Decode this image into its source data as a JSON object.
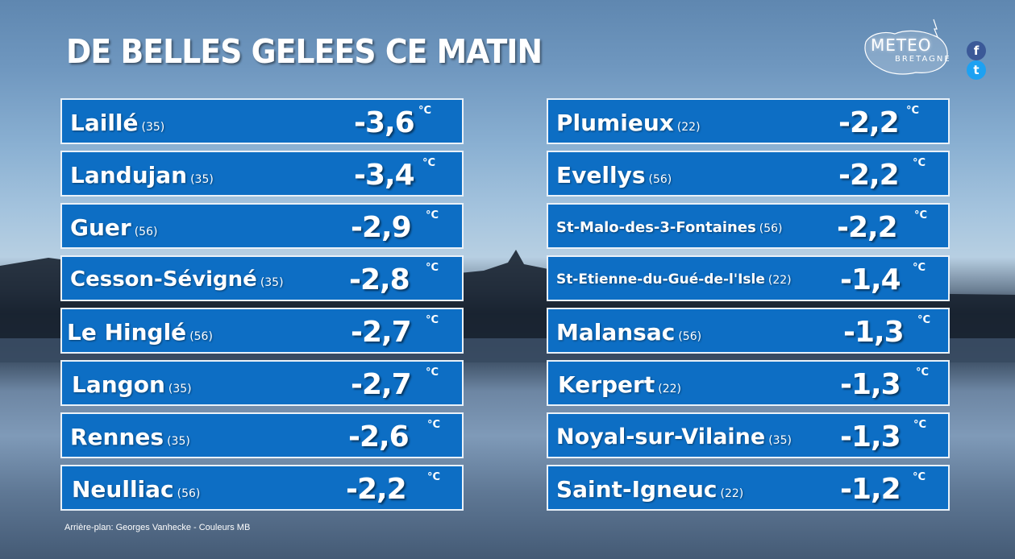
{
  "title": "DE BELLES GELEES CE MATIN",
  "logo": {
    "main": "METEO",
    "sub": "BRETAGNE"
  },
  "social": {
    "facebook": "f",
    "twitter": "t"
  },
  "unit": "°C",
  "left_rows": [
    {
      "city": "Laillé",
      "dept": "(35)",
      "temp": "-3,6"
    },
    {
      "city": "Landujan",
      "dept": "(35)",
      "temp": "-3,4"
    },
    {
      "city": "Guer",
      "dept": "(56)",
      "temp": "-2,9"
    },
    {
      "city": "Cesson-Sévigné",
      "dept": "(35)",
      "temp": "-2,8"
    },
    {
      "city": "Le Hinglé",
      "dept": "(56)",
      "temp": "-2,7"
    },
    {
      "city": "Langon",
      "dept": "(35)",
      "temp": "-2,7"
    },
    {
      "city": "Rennes",
      "dept": "(35)",
      "temp": "-2,6"
    },
    {
      "city": "Neulliac",
      "dept": "(56)",
      "temp": "-2,2"
    }
  ],
  "right_rows": [
    {
      "city": "Plumieux",
      "dept": "(22)",
      "temp": "-2,2"
    },
    {
      "city": "Evellys",
      "dept": "(56)",
      "temp": "-2,2"
    },
    {
      "city": "St-Malo-des-3-Fontaines",
      "dept": "(56)",
      "temp": "-2,2"
    },
    {
      "city": "St-Etienne-du-Gué-de-l'Isle",
      "dept": "(22)",
      "temp": "-1,4"
    },
    {
      "city": "Malansac",
      "dept": "(56)",
      "temp": "-1,3"
    },
    {
      "city": "Kerpert",
      "dept": "(22)",
      "temp": "-1,3"
    },
    {
      "city": "Noyal-sur-Vilaine",
      "dept": "(35)",
      "temp": "-1,3"
    },
    {
      "city": "Saint-Igneuc",
      "dept": "(22)",
      "temp": "-1,2"
    }
  ],
  "credit": "Arrière-plan: Georges Vanhecke - Couleurs MB"
}
